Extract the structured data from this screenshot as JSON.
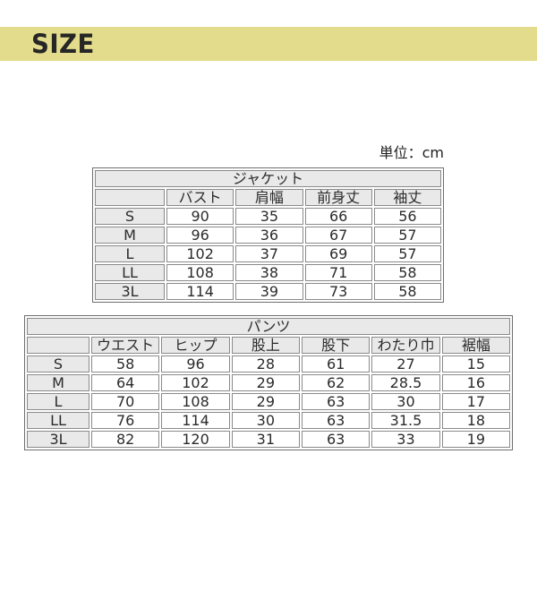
{
  "page": {
    "title": "SIZE",
    "unit_label": "単位：cm"
  },
  "chart_data": [
    {
      "type": "table",
      "title": "ジャケット",
      "columns": [
        "",
        "バスト",
        "肩幅",
        "前身丈",
        "袖丈"
      ],
      "row_labels": [
        "S",
        "M",
        "L",
        "LL",
        "3L"
      ],
      "rows": [
        [
          "S",
          90,
          35,
          66,
          56
        ],
        [
          "M",
          96,
          36,
          67,
          57
        ],
        [
          "L",
          102,
          37,
          69,
          57
        ],
        [
          "LL",
          108,
          38,
          71,
          58
        ],
        [
          "3L",
          114,
          39,
          73,
          58
        ]
      ]
    },
    {
      "type": "table",
      "title": "パンツ",
      "columns": [
        "",
        "ウエスト",
        "ヒップ",
        "股上",
        "股下",
        "わたり巾",
        "裾幅"
      ],
      "row_labels": [
        "S",
        "M",
        "L",
        "LL",
        "3L"
      ],
      "rows": [
        [
          "S",
          58,
          96,
          28,
          61,
          27,
          15
        ],
        [
          "M",
          64,
          102,
          29,
          62,
          28.5,
          16
        ],
        [
          "L",
          70,
          108,
          29,
          63,
          30,
          17
        ],
        [
          "LL",
          76,
          114,
          30,
          63,
          31.5,
          18
        ],
        [
          "3L",
          82,
          120,
          31,
          63,
          33,
          19
        ]
      ]
    }
  ],
  "colors": {
    "banner_background": "#e3dc8c",
    "header_cell_background": "#e9e9e9",
    "cell_border": "#8a8a8a",
    "text": "#2b2b2b"
  }
}
